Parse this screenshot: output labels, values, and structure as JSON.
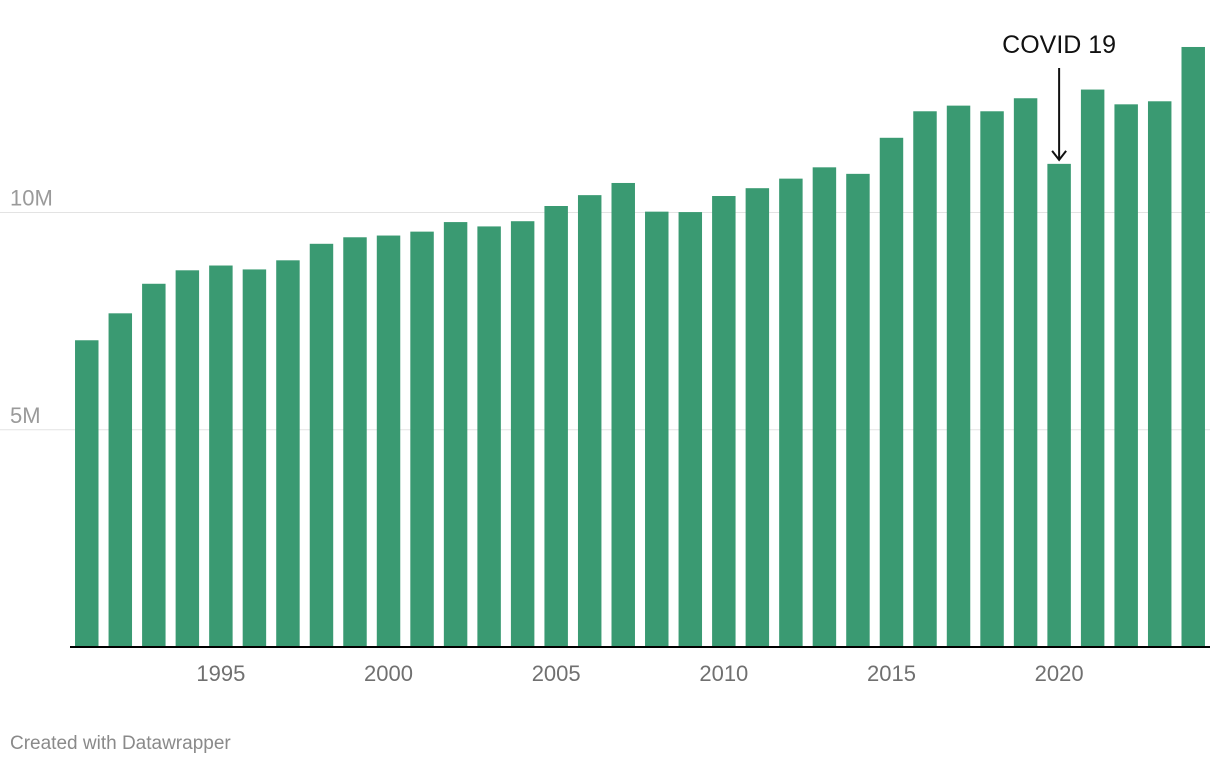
{
  "chart_data": {
    "type": "bar",
    "title": "",
    "xlabel": "",
    "ylabel": "",
    "categories": [
      1991,
      1992,
      1993,
      1994,
      1995,
      1996,
      1997,
      1998,
      1999,
      2000,
      2001,
      2002,
      2003,
      2004,
      2005,
      2006,
      2007,
      2008,
      2009,
      2010,
      2011,
      2012,
      2013,
      2014,
      2015,
      2016,
      2017,
      2018,
      2019,
      2020,
      2021,
      2022,
      2023,
      2024
    ],
    "values": [
      7060000,
      7680000,
      8360000,
      8670000,
      8780000,
      8690000,
      8900000,
      9280000,
      9430000,
      9470000,
      9560000,
      9780000,
      9680000,
      9800000,
      10150000,
      10400000,
      10680000,
      10020000,
      10010000,
      10380000,
      10560000,
      10780000,
      11040000,
      10890000,
      11720000,
      12330000,
      12460000,
      12330000,
      12630000,
      11120000,
      12830000,
      12490000,
      12560000,
      13810000
    ],
    "ylim": [
      0,
      14500000
    ],
    "y_ticks": [
      {
        "value": 5000000,
        "label": "5M"
      },
      {
        "value": 10000000,
        "label": "10M"
      }
    ],
    "x_ticks": [
      {
        "value": 1995,
        "label": "1995"
      },
      {
        "value": 2000,
        "label": "2000"
      },
      {
        "value": 2005,
        "label": "2005"
      },
      {
        "value": 2010,
        "label": "2010"
      },
      {
        "value": 2015,
        "label": "2015"
      },
      {
        "value": 2020,
        "label": "2020"
      }
    ],
    "grid": true,
    "bar_color": "#3a9a72",
    "annotations": [
      {
        "text": "COVID 19",
        "x": 2020
      }
    ]
  },
  "footer": {
    "credit": "Created with Datawrapper"
  }
}
